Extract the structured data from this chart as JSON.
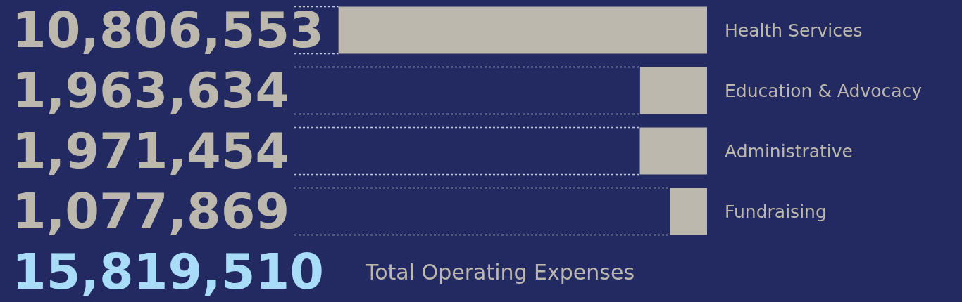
{
  "chart_data": {
    "type": "bar",
    "orientation": "horizontal",
    "categories": [
      "Health Services",
      "Education & Advocacy",
      "Administrative",
      "Fundraising"
    ],
    "values": [
      10806553,
      1963634,
      1971454,
      1077869
    ],
    "color": "#bdb8ad",
    "xlim": [
      12100000,
      0
    ],
    "value_labels": [
      "10,806,553",
      "1,963,634",
      "1,971,454",
      "1,077,869"
    ],
    "grid": false,
    "legend": false,
    "tick_labels": "y",
    "annotations": [
      "15,819,510",
      "Total Operating Expenses"
    ]
  }
}
